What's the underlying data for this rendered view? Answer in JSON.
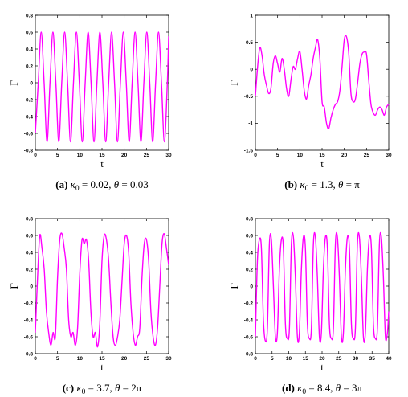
{
  "chart_data": [
    {
      "type": "line",
      "caption": {
        "label": "(a)",
        "k": "κ",
        "sub": "0",
        "eq1": " = 0.02, ",
        "th": "θ",
        "eq2": " = 0.03"
      },
      "xlabel": "t",
      "ylabel": "Γ",
      "xlim": [
        0,
        30
      ],
      "ylim": [
        -0.8,
        0.8
      ],
      "xticks": [
        "0",
        "5",
        "10",
        "15",
        "20",
        "25",
        "30"
      ],
      "yticks": [
        "-0.8",
        "-0.6",
        "-0.4",
        "-0.2",
        "0",
        "0.2",
        "0.4",
        "0.6",
        "0.8"
      ],
      "color": "#ff00ff",
      "series": [
        {
          "x": [
            0,
            0.66,
            1.32,
            1.98,
            2.64,
            3.3,
            3.96,
            4.62,
            5.28,
            5.94,
            6.6,
            7.26,
            7.92,
            8.58,
            9.24,
            9.9,
            10.56,
            11.22,
            11.88,
            12.54,
            13.2,
            13.86,
            14.52,
            15.18,
            15.84,
            16.5,
            17.16,
            17.82,
            18.48,
            19.14,
            19.8,
            20.46,
            21.12,
            21.78,
            22.44,
            23.1,
            23.76,
            24.42,
            25.08,
            25.74,
            26.4,
            27.06,
            27.72,
            28.38,
            29.04,
            29.7,
            30
          ],
          "y": [
            -0.6,
            0.0,
            0.6,
            0.0,
            -0.7,
            0.0,
            0.6,
            0.0,
            -0.7,
            0.0,
            0.6,
            0.0,
            -0.7,
            0.0,
            0.6,
            0.0,
            -0.7,
            0.0,
            0.6,
            0.0,
            -0.7,
            0.0,
            0.6,
            0.0,
            -0.7,
            0.0,
            0.6,
            0.0,
            -0.7,
            0.0,
            0.6,
            0.0,
            -0.7,
            0.0,
            0.6,
            0.0,
            -0.7,
            0.0,
            0.6,
            0.0,
            -0.7,
            0.0,
            0.6,
            0.0,
            -0.7,
            0.0,
            0.55
          ]
        }
      ]
    },
    {
      "type": "line",
      "caption": {
        "label": "(b)",
        "k": "κ",
        "sub": "0",
        "eq1": " = 1.3, ",
        "th": "θ",
        "eq2": " = π"
      },
      "xlabel": "t",
      "ylabel": "Γ",
      "xlim": [
        0,
        30
      ],
      "ylim": [
        -1.5,
        1
      ],
      "xticks": [
        "0",
        "5",
        "10",
        "15",
        "20",
        "25",
        "30"
      ],
      "yticks": [
        "-1.5",
        "-1",
        "-0.5",
        "0",
        "0.5",
        "1"
      ],
      "color": "#ff00ff",
      "series": [
        {
          "x": [
            0,
            0.5,
            1,
            1.5,
            2,
            2.5,
            3,
            3.5,
            4,
            4.5,
            5,
            5.5,
            6,
            6.5,
            7,
            7.5,
            8,
            8.5,
            9,
            9.5,
            10,
            10.5,
            11,
            11.5,
            12,
            12.5,
            13,
            13.5,
            14,
            14.5,
            15,
            15.5,
            16,
            16.5,
            17,
            17.5,
            18,
            18.5,
            19,
            19.5,
            20,
            20.5,
            21,
            21.5,
            22,
            22.5,
            23,
            23.5,
            24,
            24.5,
            25,
            25.5,
            26,
            26.5,
            27,
            27.5,
            28,
            28.5,
            29,
            29.5,
            30
          ],
          "y": [
            -0.5,
            0.05,
            0.4,
            0.25,
            -0.1,
            -0.3,
            -0.45,
            -0.35,
            0.1,
            0.25,
            0.1,
            -0.05,
            0.2,
            0.0,
            -0.35,
            -0.5,
            -0.2,
            0.05,
            0.0,
            0.2,
            0.33,
            0.0,
            -0.4,
            -0.55,
            -0.3,
            -0.1,
            0.2,
            0.4,
            0.55,
            0.2,
            -0.6,
            -0.7,
            -1.0,
            -1.1,
            -0.9,
            -0.75,
            -0.65,
            -0.6,
            -0.4,
            0.05,
            0.55,
            0.6,
            0.3,
            -0.45,
            -0.6,
            -0.55,
            -0.25,
            0.1,
            0.28,
            0.32,
            0.28,
            -0.2,
            -0.65,
            -0.8,
            -0.85,
            -0.75,
            -0.7,
            -0.75,
            -0.85,
            -0.7,
            -0.65
          ]
        }
      ]
    },
    {
      "type": "line",
      "caption": {
        "label": "(c)",
        "k": "κ",
        "sub": "0",
        "eq1": " = 3.7, ",
        "th": "θ",
        "eq2": " = 2π"
      },
      "xlabel": "t",
      "ylabel": "Γ",
      "xlim": [
        0,
        30
      ],
      "ylim": [
        -0.8,
        0.8
      ],
      "xticks": [
        "0",
        "5",
        "10",
        "15",
        "20",
        "25",
        "30"
      ],
      "yticks": [
        "-0.8",
        "-0.6",
        "-0.4",
        "-0.2",
        "0",
        "0.2",
        "0.4",
        "0.6",
        "0.8"
      ],
      "color": "#ff00ff",
      "series": [
        {
          "x": [
            0,
            0.5,
            1,
            1.5,
            2,
            2.5,
            3,
            3.5,
            4,
            4.5,
            5,
            5.5,
            6,
            6.5,
            7,
            7.5,
            8,
            8.5,
            9,
            9.5,
            10,
            10.5,
            11,
            11.5,
            12,
            12.5,
            13,
            13.5,
            14,
            14.5,
            15,
            15.5,
            16,
            16.5,
            17,
            17.5,
            18,
            18.5,
            19,
            19.5,
            20,
            20.5,
            21,
            21.5,
            22,
            22.5,
            23,
            23.5,
            24,
            24.5,
            25,
            25.5,
            26,
            26.5,
            27,
            27.5,
            28,
            28.5,
            29,
            29.5,
            30
          ],
          "y": [
            -0.55,
            0.1,
            0.6,
            0.45,
            0.2,
            -0.3,
            -0.55,
            -0.7,
            -0.55,
            -0.6,
            0.1,
            0.55,
            0.62,
            0.45,
            0.2,
            -0.4,
            -0.6,
            -0.55,
            -0.7,
            -0.5,
            0.15,
            0.55,
            0.5,
            0.55,
            0.3,
            -0.3,
            -0.6,
            -0.55,
            -0.72,
            -0.45,
            0.3,
            0.6,
            0.55,
            0.3,
            -0.2,
            -0.6,
            -0.7,
            -0.6,
            -0.4,
            0.05,
            0.5,
            0.6,
            0.4,
            -0.2,
            -0.55,
            -0.7,
            -0.6,
            -0.5,
            0.1,
            0.5,
            0.55,
            0.3,
            -0.3,
            -0.6,
            -0.7,
            -0.5,
            0.0,
            0.5,
            0.62,
            0.45,
            0.25
          ]
        }
      ]
    },
    {
      "type": "line",
      "caption": {
        "label": "(d)",
        "k": "κ",
        "sub": "0",
        "eq1": " = 8.4, ",
        "th": "θ",
        "eq2": " = 3π"
      },
      "xlabel": "t",
      "ylabel": "Γ",
      "xlim": [
        0,
        40
      ],
      "ylim": [
        -0.8,
        0.8
      ],
      "xticks": [
        "0",
        "5",
        "10",
        "15",
        "20",
        "25",
        "30",
        "35",
        "40"
      ],
      "yticks": [
        "-0.8",
        "-0.6",
        "-0.4",
        "-0.2",
        "0",
        "0.2",
        "0.4",
        "0.6",
        "0.8"
      ],
      "color": "#ff00ff",
      "series": [
        {
          "x": [
            0,
            0.6,
            1.2,
            1.8,
            2.4,
            3,
            3.6,
            4.2,
            4.8,
            5.4,
            6,
            6.6,
            7.2,
            7.8,
            8.4,
            9,
            9.6,
            10.2,
            10.8,
            11.4,
            12,
            12.6,
            13.2,
            13.8,
            14.4,
            15,
            15.6,
            16.2,
            16.8,
            17.4,
            18,
            18.6,
            19.2,
            19.8,
            20.4,
            21,
            21.6,
            22.2,
            22.8,
            23.4,
            24,
            24.6,
            25.2,
            25.8,
            26.4,
            27,
            27.6,
            28.2,
            28.8,
            29.4,
            30,
            30.6,
            31.2,
            31.8,
            32.4,
            33,
            33.6,
            34.2,
            34.8,
            35.4,
            36,
            36.6,
            37.2,
            37.8,
            38.4,
            39,
            39.6,
            40
          ],
          "y": [
            -0.6,
            0.3,
            0.55,
            0.45,
            -0.4,
            -0.65,
            -0.5,
            0.5,
            0.55,
            0.0,
            -0.6,
            -0.55,
            0.2,
            0.55,
            0.45,
            -0.45,
            -0.62,
            -0.5,
            0.5,
            0.58,
            0.1,
            -0.6,
            -0.55,
            0.2,
            0.58,
            0.45,
            -0.45,
            -0.62,
            -0.5,
            0.5,
            0.58,
            0.1,
            -0.6,
            -0.55,
            0.2,
            0.58,
            0.45,
            -0.45,
            -0.62,
            -0.5,
            0.5,
            0.58,
            0.1,
            -0.6,
            -0.55,
            0.2,
            0.58,
            0.45,
            -0.45,
            -0.62,
            -0.5,
            0.5,
            0.58,
            0.1,
            -0.6,
            -0.55,
            0.2,
            0.58,
            0.45,
            -0.45,
            -0.62,
            -0.5,
            0.5,
            0.58,
            0.1,
            -0.6,
            -0.55,
            -0.3
          ]
        }
      ]
    }
  ]
}
